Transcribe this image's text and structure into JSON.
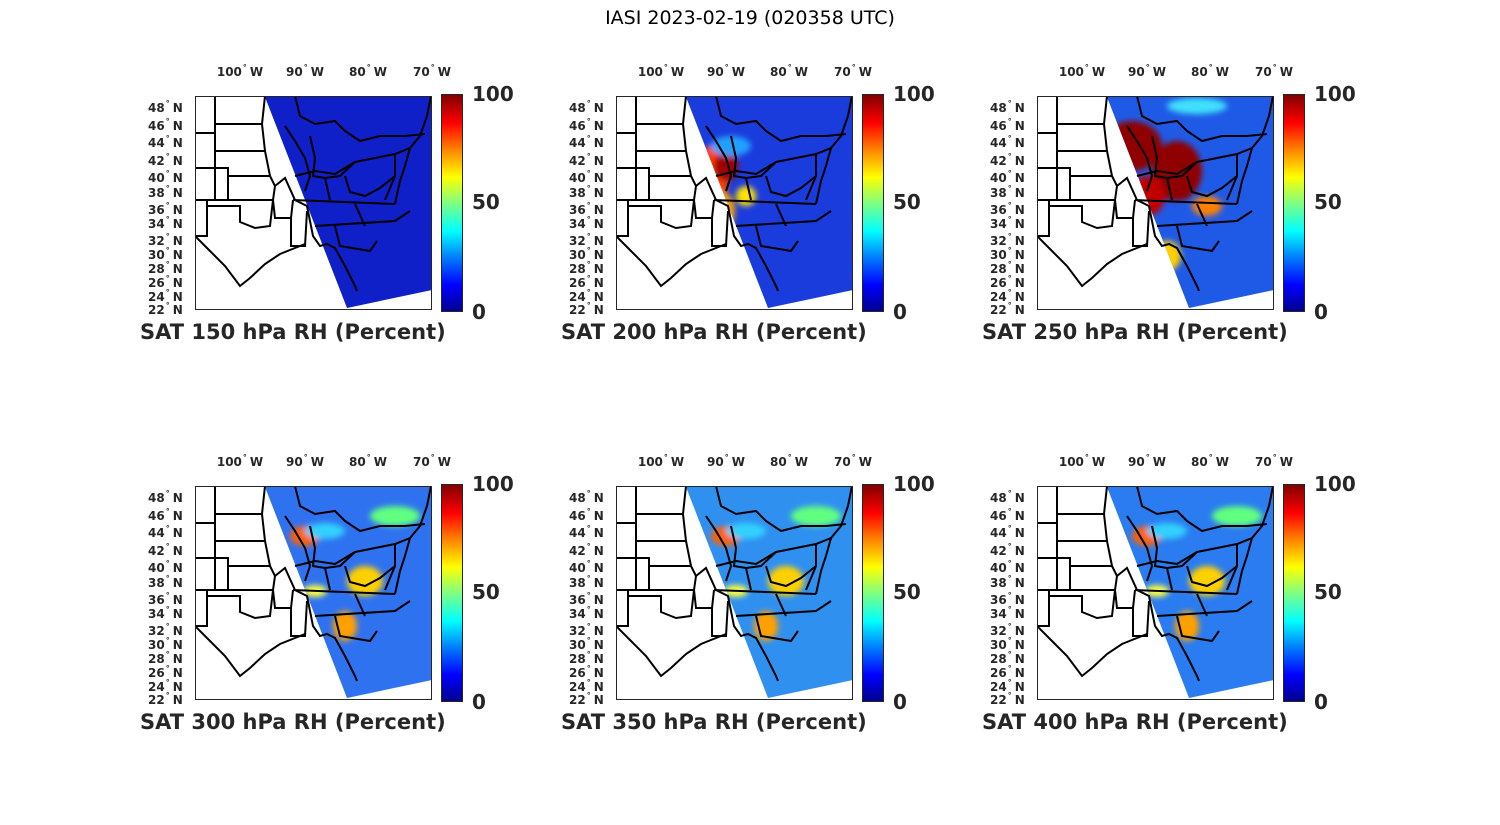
{
  "title": "IASI 2023-02-19 (020358 UTC)",
  "lon_labels": [
    "100",
    "90",
    "80",
    "70"
  ],
  "lon_suffix": "W",
  "lat_labels": [
    "48",
    "46",
    "44",
    "42",
    "40",
    "38",
    "36",
    "34",
    "32",
    "30",
    "28",
    "26",
    "24",
    "22"
  ],
  "lat_suffix": "N",
  "degree_symbol": "°",
  "colorbar": {
    "ticks": [
      "100",
      "50",
      "0"
    ],
    "range": [
      0,
      100
    ],
    "colormap": "jet"
  },
  "panels": [
    {
      "title": "SAT 150 hPa RH (Percent)",
      "swath_color": "#1020c8",
      "moist": 0
    },
    {
      "title": "SAT 200 hPa RH (Percent)",
      "swath_color": "#1a3cdc",
      "moist": 1
    },
    {
      "title": "SAT 250 hPa RH (Percent)",
      "swath_color": "#1f5ae6",
      "moist": 2
    },
    {
      "title": "SAT 300 hPa RH (Percent)",
      "swath_color": "#2f72f0",
      "moist": 3
    },
    {
      "title": "SAT 350 hPa RH (Percent)",
      "swath_color": "#3090f0",
      "moist": 3
    },
    {
      "title": "SAT 400 hPa RH (Percent)",
      "swath_color": "#2a7cf0",
      "moist": 3
    }
  ]
}
